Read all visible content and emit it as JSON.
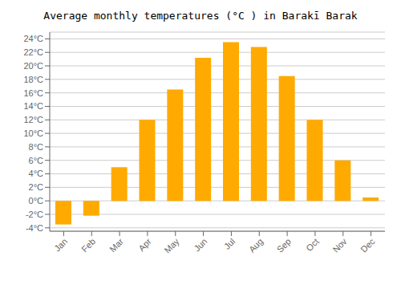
{
  "chart_data": {
    "type": "bar",
    "title": "Average monthly temperatures (°C ) in Barakī Barak",
    "categories": [
      "Jan",
      "Feb",
      "Mar",
      "Apr",
      "May",
      "Jun",
      "Jul",
      "Aug",
      "Sep",
      "Oct",
      "Nov",
      "Dec"
    ],
    "values": [
      -3.5,
      -2.2,
      5.0,
      12.0,
      16.5,
      21.2,
      23.5,
      22.8,
      18.5,
      12.0,
      6.0,
      0.5
    ],
    "color": "#FFAA00",
    "ylim": [
      -4.5,
      25
    ],
    "yticks": [
      {
        "value": -4,
        "label": "-4°C"
      },
      {
        "value": -2,
        "label": "-2°C"
      },
      {
        "value": 0,
        "label": "0°C"
      },
      {
        "value": 2,
        "label": "2°C"
      },
      {
        "value": 4,
        "label": "4°C"
      },
      {
        "value": 6,
        "label": "6°C"
      },
      {
        "value": 8,
        "label": "8°C"
      },
      {
        "value": 10,
        "label": "10°C"
      },
      {
        "value": 12,
        "label": "12°C"
      },
      {
        "value": 14,
        "label": "14°C"
      },
      {
        "value": 16,
        "label": "16°C"
      },
      {
        "value": 18,
        "label": "18°C"
      },
      {
        "value": 20,
        "label": "20°C"
      },
      {
        "value": 22,
        "label": "22°C"
      },
      {
        "value": 24,
        "label": "24°C"
      }
    ],
    "grid": true
  }
}
